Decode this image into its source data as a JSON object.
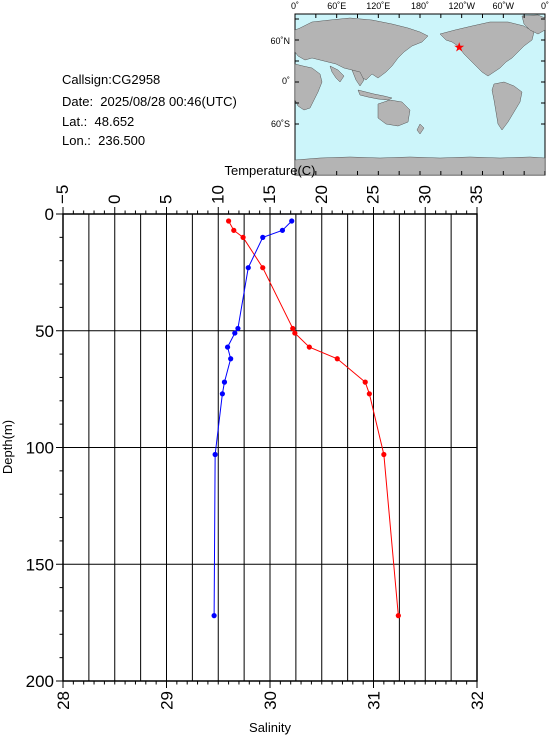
{
  "station": {
    "callsign": "Callsign:CG2958",
    "date": "Date:  2025/08/28 00:46(UTC)",
    "lat": "Lat.:  48.652",
    "lon": "Lon.:  236.500"
  },
  "map": {
    "top_ticks": [
      "0˚",
      "60˚E",
      "120˚E",
      "180˚",
      "120˚W",
      "60˚W",
      "0˚"
    ],
    "left_ticks": [
      "60˚N",
      "0˚",
      "60˚S"
    ],
    "ocean_color": "#ccf5fa",
    "land_color": "#b4b4b4",
    "marker": {
      "lat": 48.652,
      "lon": 236.5,
      "color": "#ff0000"
    }
  },
  "chart_data": {
    "type": "line",
    "depth_axis": {
      "label": "Depth(m)",
      "range": [
        0,
        200
      ],
      "ticks": [
        "0",
        "50",
        "100",
        "150",
        "200"
      ],
      "inverted": true
    },
    "temperature_axis": {
      "label": "Temperature(C)",
      "range": [
        -5,
        35
      ],
      "ticks": [
        "−5",
        "0",
        "5",
        "10",
        "15",
        "20",
        "25",
        "30",
        "35"
      ]
    },
    "salinity_axis": {
      "label": "Salinity",
      "range": [
        28,
        32
      ],
      "ticks": [
        "28",
        "29",
        "30",
        "31",
        "32"
      ]
    },
    "grid": true,
    "series": [
      {
        "axis": "temperature",
        "color": "#ff0000",
        "points": [
          {
            "depth": 3,
            "value": 11.0
          },
          {
            "depth": 7,
            "value": 11.5
          },
          {
            "depth": 10,
            "value": 12.4
          },
          {
            "depth": 23,
            "value": 14.3
          },
          {
            "depth": 49,
            "value": 17.2
          },
          {
            "depth": 51,
            "value": 17.4
          },
          {
            "depth": 57,
            "value": 18.8
          },
          {
            "depth": 62,
            "value": 21.5
          },
          {
            "depth": 72,
            "value": 24.2
          },
          {
            "depth": 77,
            "value": 24.6
          },
          {
            "depth": 103,
            "value": 26.0
          },
          {
            "depth": 172,
            "value": 27.4
          }
        ]
      },
      {
        "axis": "salinity",
        "color": "#0000ff",
        "points": [
          {
            "depth": 3,
            "value": 30.21
          },
          {
            "depth": 7,
            "value": 30.12
          },
          {
            "depth": 10,
            "value": 29.93
          },
          {
            "depth": 23,
            "value": 29.79
          },
          {
            "depth": 49,
            "value": 29.69
          },
          {
            "depth": 51,
            "value": 29.66
          },
          {
            "depth": 57,
            "value": 29.59
          },
          {
            "depth": 62,
            "value": 29.62
          },
          {
            "depth": 72,
            "value": 29.56
          },
          {
            "depth": 77,
            "value": 29.54
          },
          {
            "depth": 103,
            "value": 29.47
          },
          {
            "depth": 172,
            "value": 29.46
          }
        ]
      }
    ]
  }
}
